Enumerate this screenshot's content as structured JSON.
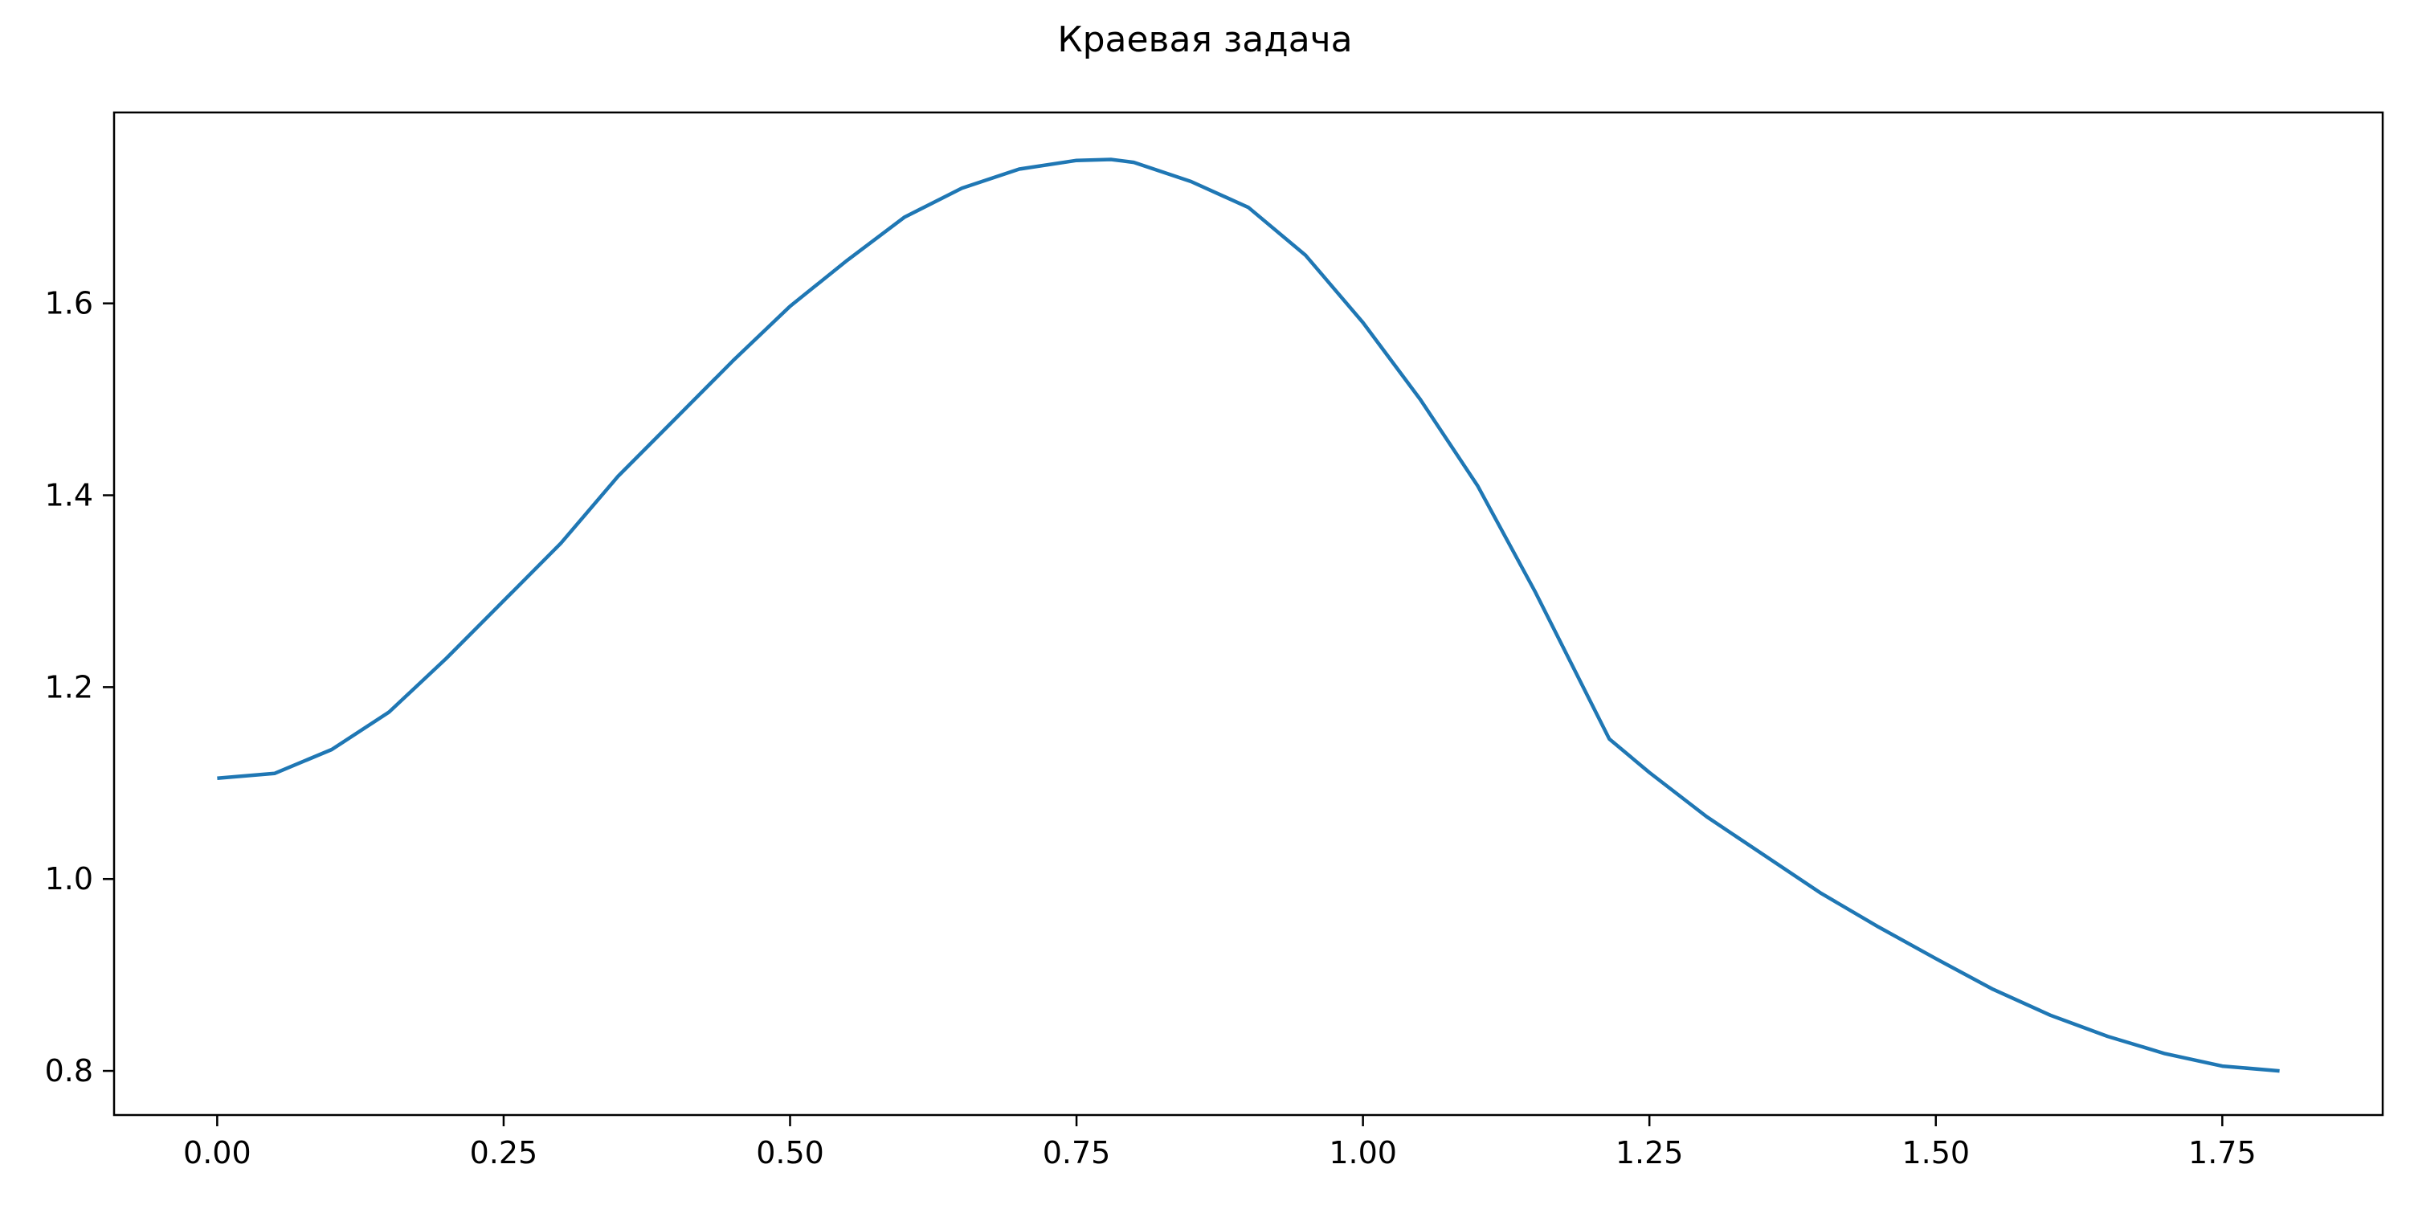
{
  "chart_data": {
    "type": "line",
    "title": "Краевая задача",
    "xlabel": "",
    "ylabel": "",
    "xlim": [
      -0.09,
      1.89
    ],
    "ylim": [
      0.754,
      1.799
    ],
    "x_ticks": [
      0.0,
      0.25,
      0.5,
      0.75,
      1.0,
      1.25,
      1.5,
      1.75
    ],
    "x_tick_labels": [
      "0.00",
      "0.25",
      "0.50",
      "0.75",
      "1.00",
      "1.25",
      "1.50",
      "1.75"
    ],
    "y_ticks": [
      0.8,
      1.0,
      1.2,
      1.4,
      1.6
    ],
    "y_tick_labels": [
      "0.8",
      "1.0",
      "1.2",
      "1.4",
      "1.6"
    ],
    "grid": false,
    "legend": "none",
    "series": [
      {
        "color": "#1f77b4",
        "x": [
          0.0,
          0.05,
          0.1,
          0.15,
          0.2,
          0.25,
          0.3,
          0.35,
          0.4,
          0.45,
          0.5,
          0.55,
          0.6,
          0.65,
          0.7,
          0.75,
          0.78,
          0.8,
          0.85,
          0.9,
          0.95,
          1.0,
          1.05,
          1.1,
          1.15,
          1.215,
          1.25,
          1.3,
          1.35,
          1.4,
          1.45,
          1.5,
          1.55,
          1.6,
          1.65,
          1.7,
          1.75,
          1.8
        ],
        "y": [
          1.105,
          1.11,
          1.135,
          1.174,
          1.23,
          1.29,
          1.35,
          1.42,
          1.48,
          1.54,
          1.597,
          1.645,
          1.69,
          1.72,
          1.74,
          1.749,
          1.75,
          1.747,
          1.727,
          1.7,
          1.65,
          1.58,
          1.5,
          1.41,
          1.3,
          1.146,
          1.111,
          1.065,
          1.025,
          0.985,
          0.95,
          0.917,
          0.885,
          0.858,
          0.836,
          0.818,
          0.805,
          0.8
        ]
      }
    ]
  }
}
